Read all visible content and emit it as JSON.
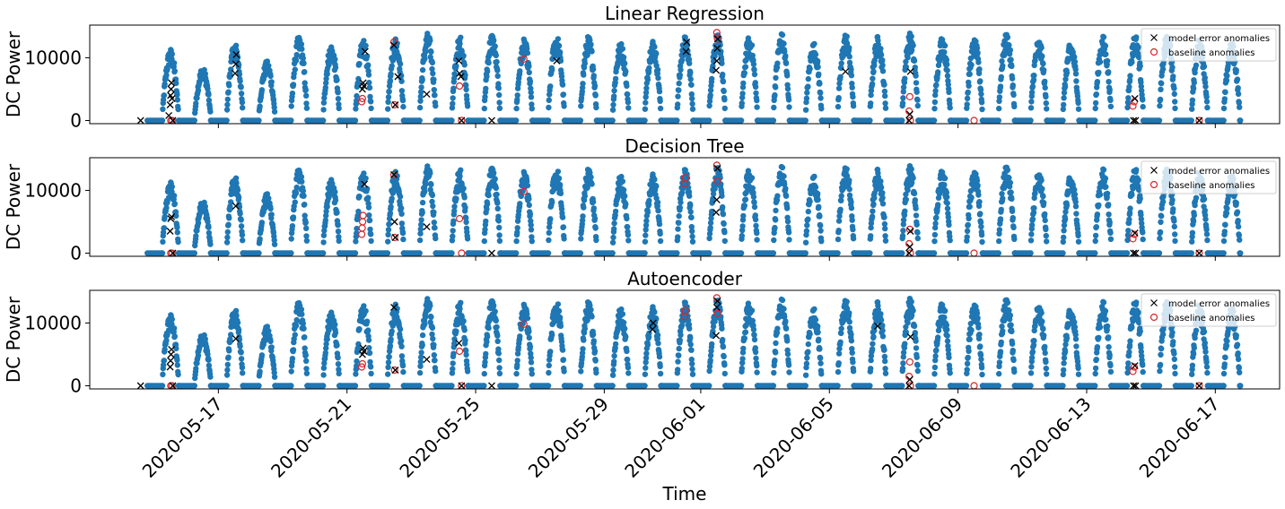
{
  "chart_data": {
    "type": "scatter",
    "xlabel": "Time",
    "ylabel": "DC Power",
    "xlim": [
      "2020-05-13",
      "2020-06-19"
    ],
    "ylim": [
      -500,
      15200
    ],
    "yticks": [
      0,
      10000
    ],
    "xticks": [
      "2020-05-17",
      "2020-05-21",
      "2020-05-25",
      "2020-05-29",
      "2020-06-01",
      "2020-06-05",
      "2020-06-09",
      "2020-06-13",
      "2020-06-17"
    ],
    "grid": false,
    "legend_position": "top-right",
    "colors": {
      "measurements": "#1f77b4",
      "model_error_anomalies": "#000000",
      "baseline_anomalies": "#d62728"
    },
    "measurements_series": {
      "name": "",
      "start": "2020-05-15",
      "end": "2020-06-17",
      "daily_peak": [
        11500,
        8500,
        12500,
        9500,
        13500,
        12200,
        13000,
        13500,
        14000,
        13500,
        14000,
        13000,
        13800,
        13500,
        12500,
        13000,
        13500,
        14000,
        13500,
        14000,
        12500,
        14000,
        13500,
        14000,
        13500,
        13000,
        14000,
        13000,
        12500,
        13500,
        13800,
        14000,
        13000,
        12500
      ]
    },
    "panels": [
      {
        "title": "Linear Regression",
        "legend": [
          "model error anomalies",
          "baseline anomalies"
        ],
        "model_error_anomalies": [
          [
            "2020-05-14 14:00",
            0
          ],
          [
            "2020-05-15 12:00",
            2500
          ],
          [
            "2020-05-15 12:20",
            4000
          ],
          [
            "2020-05-15 12:40",
            5000
          ],
          [
            "2020-05-15 13:00",
            6000
          ],
          [
            "2020-05-15 13:20",
            3500
          ],
          [
            "2020-05-15 11:00",
            800
          ],
          [
            "2020-05-15 14:00",
            0
          ],
          [
            "2020-05-17 12:30",
            7500
          ],
          [
            "2020-05-17 13:00",
            9000
          ],
          [
            "2020-05-17 13:20",
            10500
          ],
          [
            "2020-05-21 11:30",
            5000
          ],
          [
            "2020-05-21 12:00",
            6000
          ],
          [
            "2020-05-21 12:30",
            5500
          ],
          [
            "2020-05-21 13:30",
            11000
          ],
          [
            "2020-05-22 11:00",
            12000
          ],
          [
            "2020-05-22 12:00",
            2500
          ],
          [
            "2020-05-22 14:00",
            7000
          ],
          [
            "2020-05-23 11:30",
            4200
          ],
          [
            "2020-05-24 11:30",
            9500
          ],
          [
            "2020-05-24 12:00",
            7500
          ],
          [
            "2020-05-24 13:00",
            7000
          ],
          [
            "2020-05-24 13:30",
            0
          ],
          [
            "2020-05-25 12:00",
            0
          ],
          [
            "2020-05-27 12:30",
            9500
          ],
          [
            "2020-05-31 13:00",
            11000
          ],
          [
            "2020-05-31 13:30",
            12500
          ],
          [
            "2020-06-01 11:30",
            8000
          ],
          [
            "2020-06-01 12:00",
            9500
          ],
          [
            "2020-06-01 12:20",
            11500
          ],
          [
            "2020-06-01 12:40",
            13000
          ],
          [
            "2020-06-05 12:00",
            7800
          ],
          [
            "2020-06-07 11:30",
            0
          ],
          [
            "2020-06-07 12:00",
            1000
          ],
          [
            "2020-06-07 12:30",
            7800
          ],
          [
            "2020-06-14 11:00",
            0
          ],
          [
            "2020-06-14 12:00",
            3500
          ],
          [
            "2020-06-14 12:30",
            0
          ],
          [
            "2020-06-16 12:00",
            0
          ]
        ],
        "baseline_anomalies": [
          [
            "2020-05-15 12:30",
            0
          ],
          [
            "2020-05-15 13:30",
            0
          ],
          [
            "2020-05-21 11:00",
            3000
          ],
          [
            "2020-05-21 11:30",
            3500
          ],
          [
            "2020-05-22 11:00",
            12500
          ],
          [
            "2020-05-22 11:30",
            2500
          ],
          [
            "2020-05-24 12:00",
            5500
          ],
          [
            "2020-05-24 13:30",
            0
          ],
          [
            "2020-05-26 12:00",
            9800
          ],
          [
            "2020-06-01 12:00",
            14000
          ],
          [
            "2020-06-01 12:30",
            13000
          ],
          [
            "2020-06-07 11:30",
            1500
          ],
          [
            "2020-06-07 12:00",
            3800
          ],
          [
            "2020-06-07 12:30",
            0
          ],
          [
            "2020-06-09 12:00",
            0
          ],
          [
            "2020-06-14 10:30",
            2300
          ],
          [
            "2020-06-14 11:30",
            3000
          ],
          [
            "2020-06-16 12:00",
            0
          ]
        ]
      },
      {
        "title": "Decision Tree",
        "legend": [
          "model error anomalies",
          "baseline anomalies"
        ],
        "model_error_anomalies": [
          [
            "2020-05-15 12:00",
            3500
          ],
          [
            "2020-05-15 12:30",
            5500
          ],
          [
            "2020-05-15 13:00",
            5800
          ],
          [
            "2020-05-15 14:00",
            0
          ],
          [
            "2020-05-17 13:00",
            7500
          ],
          [
            "2020-05-21 13:00",
            11000
          ],
          [
            "2020-05-22 11:00",
            12500
          ],
          [
            "2020-05-22 11:30",
            5000
          ],
          [
            "2020-05-22 12:00",
            2500
          ],
          [
            "2020-05-23 11:30",
            4200
          ],
          [
            "2020-05-25 12:00",
            0
          ],
          [
            "2020-06-01 11:30",
            6500
          ],
          [
            "2020-06-01 12:00",
            8500
          ],
          [
            "2020-06-01 12:30",
            13500
          ],
          [
            "2020-06-07 11:30",
            0
          ],
          [
            "2020-06-07 12:00",
            1000
          ],
          [
            "2020-06-07 12:30",
            3500
          ],
          [
            "2020-06-14 11:00",
            0
          ],
          [
            "2020-06-14 12:00",
            3200
          ],
          [
            "2020-06-14 12:30",
            0
          ],
          [
            "2020-06-16 12:00",
            0
          ]
        ],
        "baseline_anomalies": [
          [
            "2020-05-15 12:30",
            0
          ],
          [
            "2020-05-15 13:30",
            0
          ],
          [
            "2020-05-21 11:00",
            3000
          ],
          [
            "2020-05-21 11:20",
            4000
          ],
          [
            "2020-05-21 11:40",
            5000
          ],
          [
            "2020-05-21 12:00",
            6000
          ],
          [
            "2020-05-22 11:00",
            12500
          ],
          [
            "2020-05-22 11:30",
            2500
          ],
          [
            "2020-05-24 12:00",
            5500
          ],
          [
            "2020-05-24 13:30",
            0
          ],
          [
            "2020-05-26 12:00",
            9800
          ],
          [
            "2020-05-31 12:00",
            11000
          ],
          [
            "2020-05-31 12:30",
            12000
          ],
          [
            "2020-06-01 12:00",
            14000
          ],
          [
            "2020-06-01 12:30",
            11500
          ],
          [
            "2020-06-07 11:30",
            1500
          ],
          [
            "2020-06-07 12:00",
            3800
          ],
          [
            "2020-06-07 12:30",
            0
          ],
          [
            "2020-06-09 12:00",
            0
          ],
          [
            "2020-06-14 10:30",
            2300
          ],
          [
            "2020-06-14 11:30",
            3000
          ],
          [
            "2020-06-16 12:00",
            0
          ]
        ]
      },
      {
        "title": "Autoencoder",
        "legend": [
          "model error anomalies",
          "baseline anomalies"
        ],
        "model_error_anomalies": [
          [
            "2020-05-14 14:00",
            0
          ],
          [
            "2020-05-15 12:00",
            3000
          ],
          [
            "2020-05-15 12:20",
            4000
          ],
          [
            "2020-05-15 12:40",
            5000
          ],
          [
            "2020-05-15 13:00",
            5800
          ],
          [
            "2020-05-15 14:00",
            0
          ],
          [
            "2020-05-17 13:00",
            7500
          ],
          [
            "2020-05-21 11:30",
            5000
          ],
          [
            "2020-05-21 12:00",
            6000
          ],
          [
            "2020-05-21 12:30",
            5500
          ],
          [
            "2020-05-22 11:00",
            12500
          ],
          [
            "2020-05-22 12:00",
            2500
          ],
          [
            "2020-05-23 11:30",
            4200
          ],
          [
            "2020-05-24 11:30",
            6800
          ],
          [
            "2020-05-24 13:30",
            0
          ],
          [
            "2020-05-25 12:00",
            0
          ],
          [
            "2020-05-30 12:00",
            9000
          ],
          [
            "2020-05-30 12:30",
            10000
          ],
          [
            "2020-06-01 11:30",
            8000
          ],
          [
            "2020-06-01 12:00",
            12500
          ],
          [
            "2020-06-01 12:30",
            13500
          ],
          [
            "2020-06-06 12:00",
            9500
          ],
          [
            "2020-06-07 11:30",
            0
          ],
          [
            "2020-06-07 12:00",
            1000
          ],
          [
            "2020-06-07 12:30",
            7800
          ],
          [
            "2020-06-14 11:00",
            0
          ],
          [
            "2020-06-14 12:00",
            3200
          ],
          [
            "2020-06-14 12:30",
            0
          ],
          [
            "2020-06-16 12:00",
            0
          ]
        ],
        "baseline_anomalies": [
          [
            "2020-05-15 12:30",
            0
          ],
          [
            "2020-05-15 13:30",
            0
          ],
          [
            "2020-05-21 11:00",
            3000
          ],
          [
            "2020-05-21 11:30",
            3500
          ],
          [
            "2020-05-22 11:30",
            2500
          ],
          [
            "2020-05-24 12:00",
            5500
          ],
          [
            "2020-05-24 13:30",
            0
          ],
          [
            "2020-05-26 12:00",
            9800
          ],
          [
            "2020-05-31 12:00",
            11000
          ],
          [
            "2020-05-31 12:30",
            12000
          ],
          [
            "2020-06-01 12:00",
            14000
          ],
          [
            "2020-06-01 12:30",
            11500
          ],
          [
            "2020-06-07 11:30",
            1500
          ],
          [
            "2020-06-07 12:00",
            3800
          ],
          [
            "2020-06-07 12:30",
            0
          ],
          [
            "2020-06-09 12:00",
            0
          ],
          [
            "2020-06-14 10:30",
            2300
          ],
          [
            "2020-06-14 11:30",
            3000
          ],
          [
            "2020-06-16 12:00",
            0
          ]
        ]
      }
    ]
  }
}
